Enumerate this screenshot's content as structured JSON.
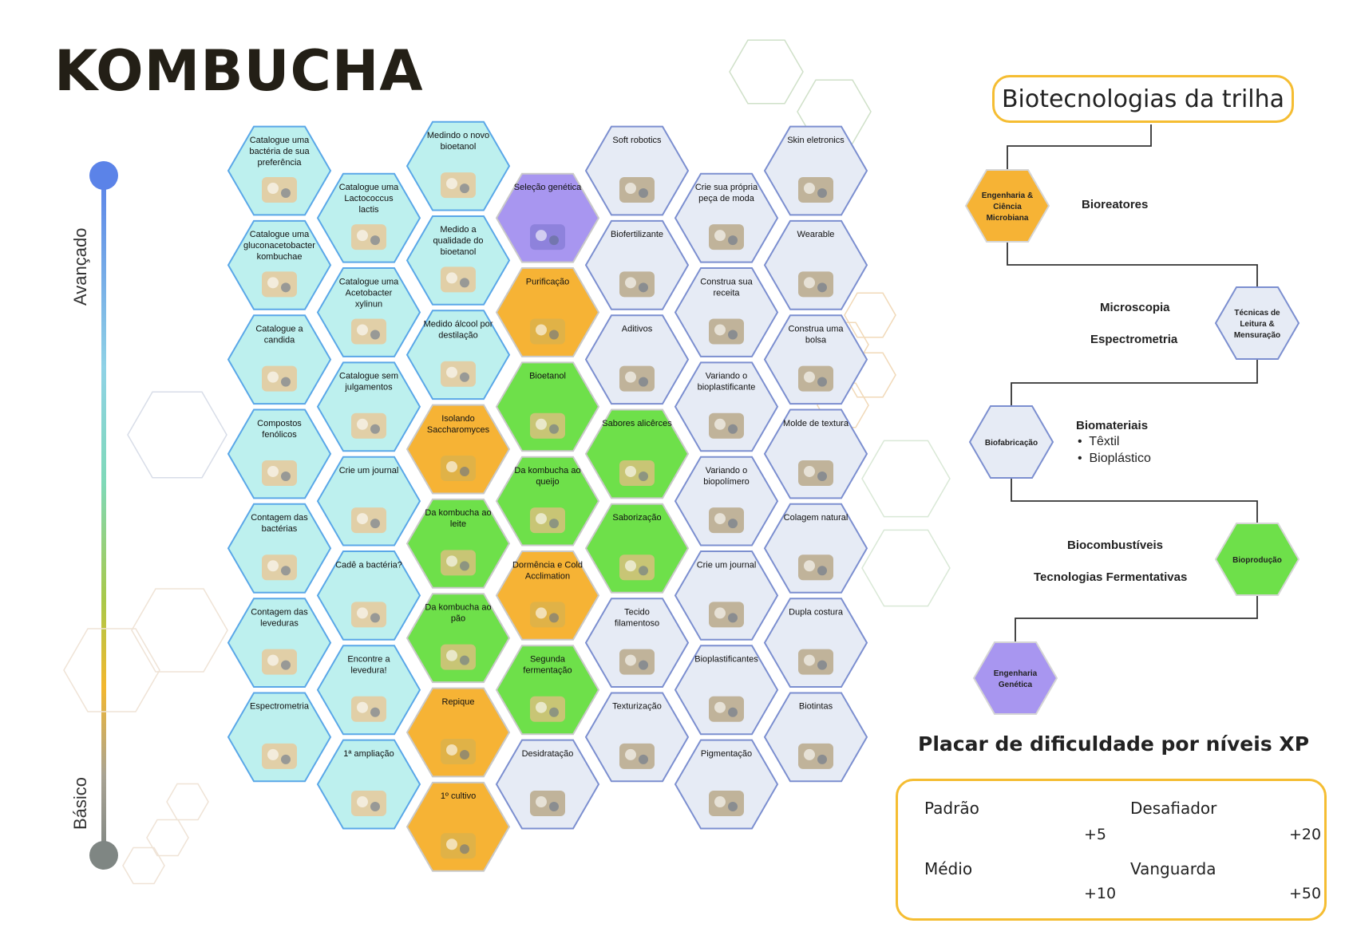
{
  "title": "KOMBUCHA",
  "axis": {
    "top_label": "Avançado",
    "bottom_label": "Básico",
    "top_color": "#5b83e8",
    "bottom_color": "#7f8683"
  },
  "colors": {
    "teal_fill": "#bdf0ee",
    "teal_stroke": "#5aa7e8",
    "gray_fill": "#e6ebf5",
    "gray_stroke": "#7c8fd0",
    "yellow_fill": "#f6b335",
    "yellow_stroke": "#c9c9c9",
    "green_fill": "#6ee04a",
    "green_stroke": "#c9c9c9",
    "purple_fill": "#a896f0",
    "purple_stroke": "#c9c9c9",
    "accent": "#f5bd32"
  },
  "board": {
    "columns": [
      {
        "cells": [
          {
            "label": "Catalogue uma bactéria de sua preferência",
            "color": "teal",
            "icon": "circuit-board-icon"
          },
          {
            "label": "Catalogue uma gluconacetobacter kombuchae",
            "color": "teal",
            "icon": "bacterium-icon"
          },
          {
            "label": "Catalogue a candida",
            "color": "teal",
            "icon": "yeast-colony-icon"
          },
          {
            "label": "Compostos fenólicos",
            "color": "teal",
            "icon": "molecule-icon"
          },
          {
            "label": "Contagem das bactérias",
            "color": "teal",
            "icon": "lab-grid-icon"
          },
          {
            "label": "Contagem das leveduras",
            "color": "teal",
            "icon": "microscope-icon"
          },
          {
            "label": "Espectrometria",
            "color": "teal",
            "icon": "spectrometer-icon"
          }
        ]
      },
      {
        "cells": [
          {
            "label": "Catalogue uma Lactococcus lactis",
            "color": "teal",
            "icon": "petri-dish-icon"
          },
          {
            "label": "Catalogue uma Acetobacter xylinun",
            "color": "teal",
            "icon": "rod-bacterium-icon"
          },
          {
            "label": "Catalogue sem julgamentos",
            "color": "teal",
            "icon": "catalog-book-icon"
          },
          {
            "label": "Crie um journal",
            "color": "teal",
            "icon": "journal-icon"
          },
          {
            "label": "Cadê a bactéria?",
            "color": "teal",
            "icon": "bacillus-icon"
          },
          {
            "label": "Encontre a levedura!",
            "color": "teal",
            "icon": "yeast-cell-icon"
          },
          {
            "label": "1ª ampliação",
            "color": "teal",
            "icon": "microscope-icon"
          }
        ]
      },
      {
        "cells": [
          {
            "label": "Medindo o novo bioetanol",
            "color": "teal",
            "icon": "scientist-icon"
          },
          {
            "label": "Medido a qualidade do bioetanol",
            "color": "teal",
            "icon": "lab-equipment-icon"
          },
          {
            "label": "Medido álcool por destilação",
            "color": "teal",
            "icon": "distillation-icon"
          },
          {
            "label": "Isolando Saccharomyces",
            "color": "yellow",
            "icon": "petri-dish-icon"
          },
          {
            "label": "Da kombucha ao leite",
            "color": "green",
            "icon": "milk-jar-icon"
          },
          {
            "label": "Da kombucha ao pão",
            "color": "green",
            "icon": "bread-icon"
          },
          {
            "label": "Repique",
            "color": "yellow",
            "icon": "jar-icon"
          },
          {
            "label": "1º cultivo",
            "color": "yellow",
            "icon": "culture-plate-icon"
          }
        ]
      },
      {
        "cells": [
          {
            "label": "Seleção genética",
            "color": "purple",
            "icon": "dna-grid-icon"
          },
          {
            "label": "Purificação",
            "color": "yellow",
            "icon": "purifier-icon"
          },
          {
            "label": "Bioetanol",
            "color": "green",
            "icon": "refinery-icon"
          },
          {
            "label": "Da kombucha ao queijo",
            "color": "green",
            "icon": "cheese-icon"
          },
          {
            "label": "Dormência e Cold Acclimation",
            "color": "yellow",
            "icon": "frozen-bottle-icon"
          },
          {
            "label": "Segunda fermentação",
            "color": "green",
            "icon": "berry-jar-icon"
          },
          {
            "label": "Desidratação",
            "color": "gray",
            "icon": "dried-sheet-icon"
          }
        ]
      },
      {
        "cells": [
          {
            "label": "Soft robotics",
            "color": "gray",
            "icon": "soft-sheet-icon"
          },
          {
            "label": "Biofertilizante",
            "color": "gray",
            "icon": "plant-sprout-icon"
          },
          {
            "label": "Aditivos",
            "color": "gray",
            "icon": "bowl-icon"
          },
          {
            "label": "Sabores alicêrces",
            "color": "green",
            "icon": "taste-icon"
          },
          {
            "label": "Saborização",
            "color": "green",
            "icon": "kombucha-bottle-icon"
          },
          {
            "label": "Tecido filamentoso",
            "color": "gray",
            "icon": "fiber-icon"
          },
          {
            "label": "Texturização",
            "color": "gray",
            "icon": "sponge-icon"
          }
        ]
      },
      {
        "cells": [
          {
            "label": "Crie sua própria peça de moda",
            "color": "gray",
            "icon": "head-ideas-icon"
          },
          {
            "label": "Construa sua receita",
            "color": "gray",
            "icon": "recipe-scroll-icon"
          },
          {
            "label": "Variando o bioplastificante",
            "color": "gray",
            "icon": "lab-vials-icon"
          },
          {
            "label": "Variando o biopolímero",
            "color": "gray",
            "icon": "polymer-icon"
          },
          {
            "label": "Crie um journal",
            "color": "gray",
            "icon": "journal-icon"
          },
          {
            "label": "Bioplastificantes",
            "color": "gray",
            "icon": "film-sheet-icon"
          },
          {
            "label": "Pigmentação",
            "color": "gray",
            "icon": "pigment-sheet-icon"
          }
        ]
      },
      {
        "cells": [
          {
            "label": "Skin eletronics",
            "color": "gray",
            "icon": "skin-patch-icon"
          },
          {
            "label": "Wearable",
            "color": "gray",
            "icon": "necklace-icon"
          },
          {
            "label": "Construa uma bolsa",
            "color": "gray",
            "icon": "handbag-icon"
          },
          {
            "label": "Molde de textura",
            "color": "gray",
            "icon": "texture-mold-icon"
          },
          {
            "label": "Colagem natural",
            "color": "gray",
            "icon": "glue-icon"
          },
          {
            "label": "Dupla costura",
            "color": "gray",
            "icon": "stitch-icon"
          },
          {
            "label": "Biotintas",
            "color": "gray",
            "icon": "vegetables-icon"
          }
        ]
      }
    ]
  },
  "sidebar": {
    "title": "Biotecnologias da trilha",
    "nodes": [
      {
        "label": "Engenharia & Ciência Microbiana",
        "color": "#f6b335",
        "items": [
          "Bioreatores"
        ]
      },
      {
        "label": "Técnicas de Leitura & Mensuração",
        "color": "#e6ebf5",
        "items": [
          "Microscopia",
          "Espectrometria"
        ]
      },
      {
        "label": "Biofabricação",
        "color": "#e6ebf5",
        "items": [
          "Biomateriais",
          "Têxtil",
          "Bioplástico"
        ]
      },
      {
        "label": "Bioprodução",
        "color": "#6ee04a",
        "items": [
          "Biocombustíveis",
          "Tecnologias Fermentativas"
        ]
      },
      {
        "label": "Engenharia Genética",
        "color": "#a896f0",
        "items": []
      }
    ]
  },
  "scoreboard": {
    "title": "Placar de dificuldade por níveis XP",
    "levels": [
      {
        "name": "Padrão",
        "filled": 1,
        "xp": "+5"
      },
      {
        "name": "Desafiador",
        "filled": 2.5,
        "xp": "+20"
      },
      {
        "name": "Médio",
        "filled": 2,
        "xp": "+10"
      },
      {
        "name": "Vanguarda",
        "filled": 5,
        "xp": "+50"
      }
    ]
  }
}
